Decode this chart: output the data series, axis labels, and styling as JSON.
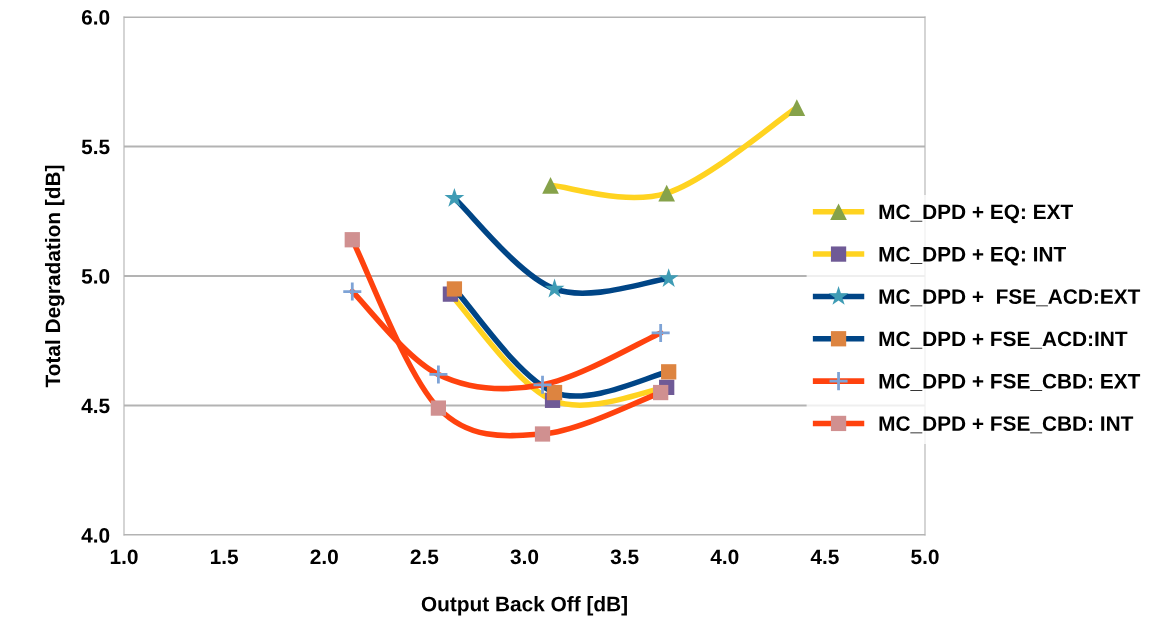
{
  "chart_data": {
    "type": "line",
    "xlabel": "Output Back Off [dB]",
    "ylabel": "Total Degradation [dB]",
    "xlim": [
      1.0,
      5.0
    ],
    "xticks": [
      {
        "value": 1.0,
        "label": "1.0"
      },
      {
        "value": 1.5,
        "label": "1.5"
      },
      {
        "value": 2.0,
        "label": "2.0"
      },
      {
        "value": 2.5,
        "label": "2.5"
      },
      {
        "value": 3.0,
        "label": "3.0"
      },
      {
        "value": 3.5,
        "label": "3.5"
      },
      {
        "value": 4.0,
        "label": "4.0"
      },
      {
        "value": 4.5,
        "label": "4.5"
      },
      {
        "value": 5.0,
        "label": "5.0"
      }
    ],
    "ylim": [
      4.0,
      6.0
    ],
    "yticks": [
      {
        "value": 4.0,
        "label": "4.0"
      },
      {
        "value": 4.5,
        "label": "4.5"
      },
      {
        "value": 5.0,
        "label": "5.0"
      },
      {
        "value": 5.5,
        "label": "5.5"
      },
      {
        "value": 6.0,
        "label": "6.0"
      }
    ],
    "grid": "y",
    "legend": "right",
    "series": [
      {
        "name": "MC_DPD + EQ: EXT",
        "color": "#ffd320",
        "marker": "triangle",
        "colors": [
          "#86a24a",
          "#86a24a",
          "#86a24a"
        ],
        "x": [
          3.13,
          3.71,
          4.36
        ],
        "values": [
          5.35,
          5.32,
          5.65
        ]
      },
      {
        "name": "MC_DPD + EQ: INT",
        "color": "#ffd320",
        "marker": "square",
        "colors": [
          "#6f5a96",
          "#6f5a96",
          "#6f5a96"
        ],
        "x": [
          2.63,
          3.14,
          3.71
        ],
        "values": [
          4.93,
          4.52,
          4.57
        ]
      },
      {
        "name": "MC_DPD +  FSE_ACD:EXT",
        "color": "#004586",
        "marker": "star",
        "colors": [
          "#3f9cb5",
          "#3f9cb5",
          "#3f9cb5"
        ],
        "x": [
          2.65,
          3.15,
          3.72
        ],
        "values": [
          5.3,
          4.95,
          4.99
        ]
      },
      {
        "name": "MC_DPD + FSE_ACD:INT",
        "color": "#004586",
        "marker": "square",
        "colors": [
          "#dd8440",
          "#dd8440",
          "#dd8440"
        ],
        "x": [
          2.65,
          3.15,
          3.72
        ],
        "values": [
          4.95,
          4.55,
          4.63
        ]
      },
      {
        "name": "MC_DPD + FSE_CBD: EXT",
        "color": "#ff420e",
        "marker": "cross",
        "colors": [
          "#7ea3d6",
          "#7ea3d6",
          "#7ea3d6",
          "#7ea3d6"
        ],
        "x": [
          2.14,
          2.57,
          3.09,
          3.68
        ],
        "values": [
          4.94,
          4.62,
          4.58,
          4.78
        ]
      },
      {
        "name": "MC_DPD + FSE_CBD: INT",
        "color": "#ff420e",
        "marker": "square",
        "colors": [
          "#d09090",
          "#d09090",
          "#d09090",
          "#d09090"
        ],
        "x": [
          2.14,
          2.57,
          3.09,
          3.68
        ],
        "values": [
          5.14,
          4.49,
          4.39,
          4.55
        ]
      }
    ]
  }
}
